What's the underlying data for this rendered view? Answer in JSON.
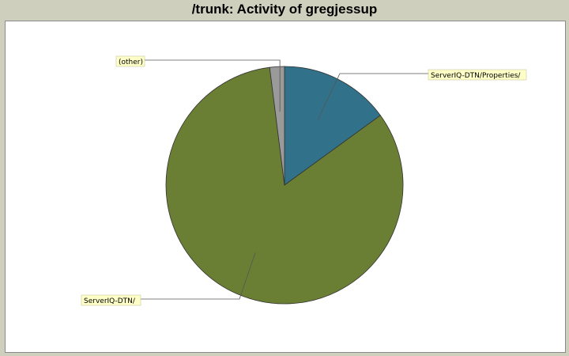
{
  "header": {
    "title": "/trunk: Activity of gregjessup"
  },
  "chart_data": {
    "type": "pie",
    "title": "/trunk: Activity of gregjessup",
    "start": "12 o'clock",
    "direction": "clockwise",
    "slices": [
      {
        "label": "ServerIQ-DTN/Properties/",
        "value": 15.0,
        "color": "#31728a"
      },
      {
        "label": "ServerIQ-DTN/",
        "value": 83.0,
        "color": "#6b7f34"
      },
      {
        "label": "(other)",
        "value": 2.0,
        "color": "#9a9a9a"
      }
    ],
    "label_background": "#ffffc8"
  }
}
